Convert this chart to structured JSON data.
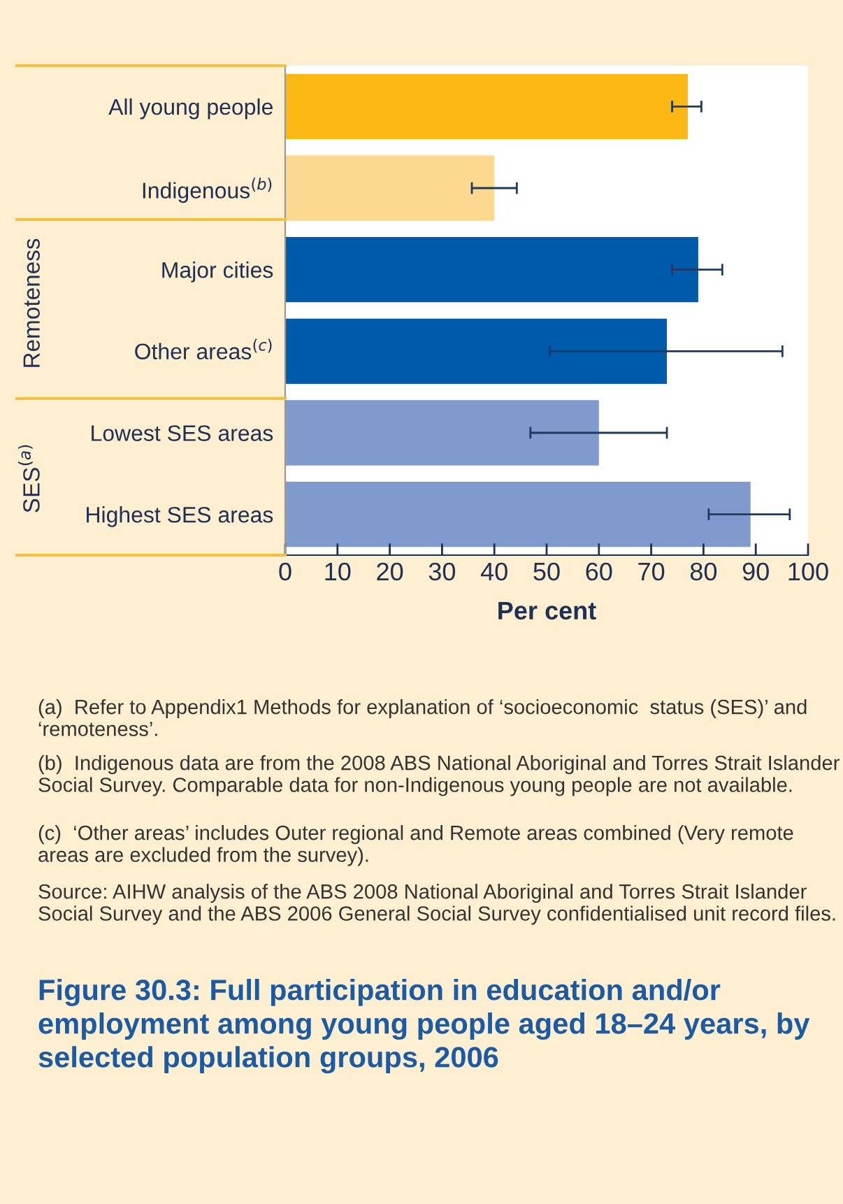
{
  "chart_data": {
    "type": "bar",
    "orientation": "horizontal",
    "title": "Figure 30.3: Full participation in education and/or employment among young people aged 18–24 years, by selected population groups, 2006",
    "xlabel": "Per cent",
    "categories": [
      "All young people",
      "Indigenous$^{(b)}$",
      "Major cities",
      "Other areas$^{(c)}$",
      "Lowest SES areas",
      "Highest SES areas"
    ],
    "values": [
      77,
      40,
      79,
      73,
      60,
      89
    ],
    "colors": [
      "#fbb813",
      "#fdd88f",
      "#005aab",
      "#005aab",
      "#7f9acd",
      "#7f9acd"
    ],
    "errors": [
      [
        74,
        79.6
      ],
      [
        35.7,
        44.3
      ],
      [
        74,
        83.6
      ],
      [
        50.6,
        95.1
      ],
      [
        46.9,
        73
      ],
      [
        81,
        96.5
      ]
    ],
    "xlim": [
      0,
      100
    ],
    "xticks": [
      0,
      10,
      20,
      30,
      40,
      50,
      60,
      70,
      80,
      90,
      100
    ],
    "grid": false,
    "annotations": [
      "Remoteness",
      "SES$^{(a)}$",
      "(a)  Refer to Appendix1 Methods for explanation of ‘socioeconomic  status (SES)’ and ‘remoteness’.",
      "(b)  Indigenous data are from the 2008 ABS National Aboriginal and Torres Strait Islander Social Survey. Comparable data for non-Indigenous young people are not available.",
      "(c)  ‘Other areas’ includes Outer regional and Remote areas combined (Very remote areas are excluded from the survey).",
      "Source: AIHW analysis of the ABS 2008 National Aboriginal and Torres Strait Islander Social Survey and the ABS 2006 General Social Survey confidentialised unit record files."
    ]
  }
}
